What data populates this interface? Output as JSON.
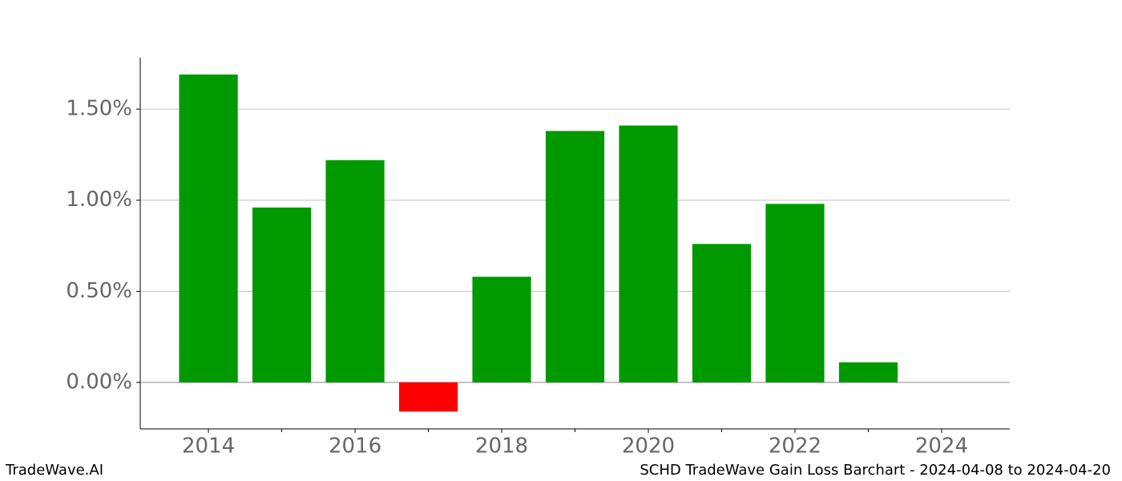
{
  "chart_data": {
    "type": "bar",
    "title": "SCHD TradeWave Gain Loss Barchart - 2024-04-08 to 2024-04-20",
    "brand": "TradeWave.AI",
    "x": [
      2014,
      2015,
      2016,
      2017,
      2018,
      2019,
      2020,
      2021,
      2022,
      2023,
      2024
    ],
    "values": [
      1.69,
      0.96,
      1.22,
      -0.16,
      0.58,
      1.38,
      1.41,
      0.76,
      0.98,
      0.11,
      null
    ],
    "colors": {
      "positive": "#009900",
      "negative": "#ff0000"
    },
    "xlim": [
      2013.07,
      2024.93
    ],
    "xticks": [
      2014,
      2016,
      2018,
      2020,
      2022,
      2024
    ],
    "xticks_minor": [
      2015,
      2017,
      2019,
      2021,
      2023
    ],
    "ylim": [
      -0.255,
      1.782
    ],
    "yticks": [
      {
        "value": 0,
        "label": "0.00%"
      },
      {
        "value": 0.5,
        "label": "0.50%"
      },
      {
        "value": 1,
        "label": "1.00%"
      },
      {
        "value": 1.5,
        "label": "1.50%"
      }
    ],
    "grid": true
  }
}
